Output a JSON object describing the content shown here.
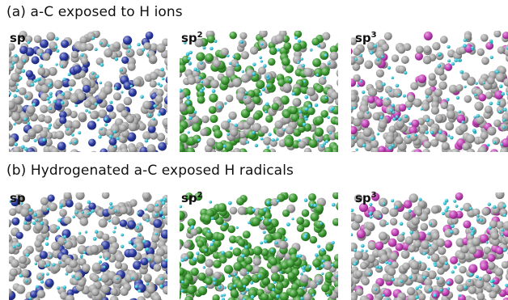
{
  "figure": {
    "row_a": {
      "title": "(a) a-C exposed to H ions",
      "panels": [
        {
          "label": "sp",
          "sup": "",
          "highlight": "#2b3aa3"
        },
        {
          "label": "sp",
          "sup": "2",
          "highlight": "#3a9a30"
        },
        {
          "label": "sp",
          "sup": "3",
          "highlight": "#c23fb6"
        }
      ]
    },
    "row_b": {
      "title": "(b) Hydrogenated a-C exposed H radicals",
      "panels": [
        {
          "label": "sp",
          "sup": "",
          "highlight": "#2b3aa3"
        },
        {
          "label": "sp",
          "sup": "2",
          "highlight": "#3a9a30"
        },
        {
          "label": "sp",
          "sup": "3",
          "highlight": "#c23fb6"
        }
      ]
    },
    "colors": {
      "carbon": "#a6a6a6",
      "hydrogen": "#35c6da"
    }
  }
}
